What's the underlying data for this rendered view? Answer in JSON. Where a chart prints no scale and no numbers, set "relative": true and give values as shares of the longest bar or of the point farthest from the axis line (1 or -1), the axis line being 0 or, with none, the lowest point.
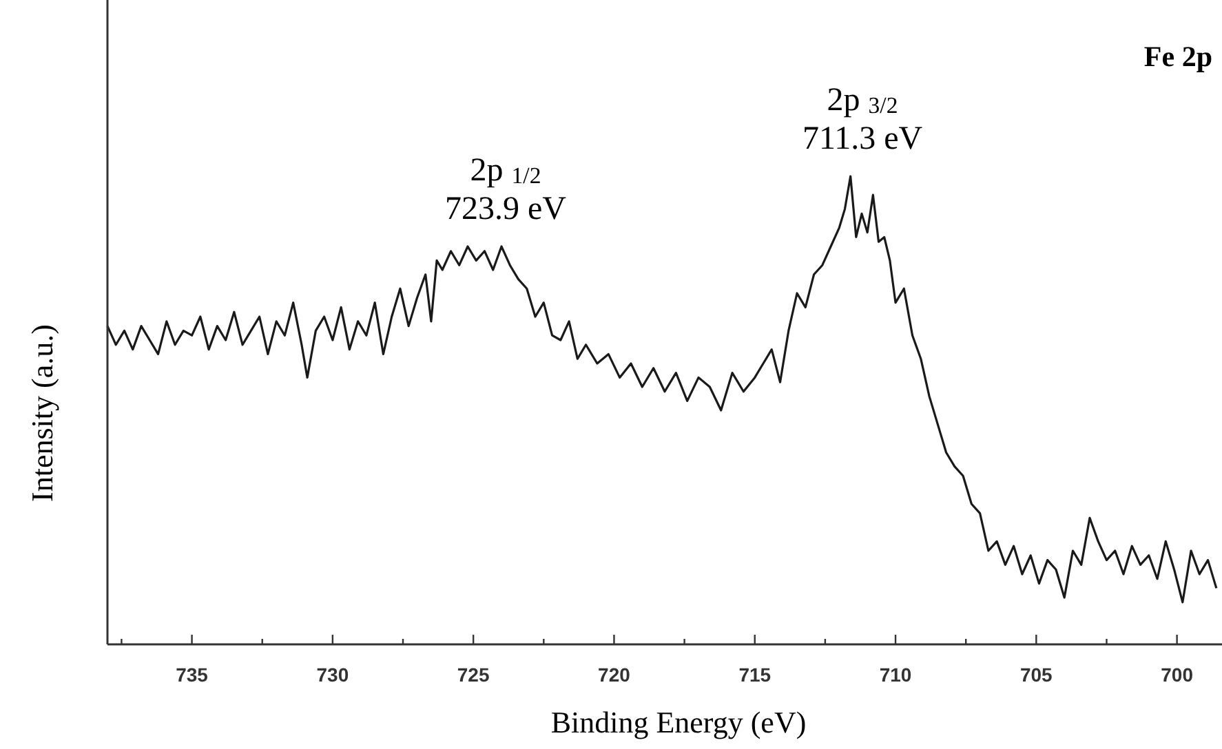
{
  "chart_data": {
    "type": "line",
    "relative": true,
    "title": "Fe 2p",
    "xlabel": "Binding Energy (eV)",
    "ylabel": "Intensity (a.u.)",
    "xlim": [
      738,
      698.4
    ],
    "xticks": [
      {
        "value": 737.5,
        "label": null
      },
      735,
      {
        "value": 732.5,
        "label": null
      },
      730,
      {
        "value": 727.5,
        "label": null
      },
      725,
      {
        "value": 722.5,
        "label": null
      },
      720,
      {
        "value": 717.5,
        "label": null
      },
      715,
      {
        "value": 712.5,
        "label": null
      },
      710,
      {
        "value": 707.5,
        "label": null
      },
      705,
      {
        "value": 702.5,
        "label": null
      },
      700
    ],
    "grid": false,
    "marker": "none",
    "line_style": "solid",
    "annotations": [
      "2p $_{1/2}$\n723.9 eV",
      "2p $_{3/2}$\n711.3 eV"
    ],
    "series": [
      {
        "color": "#1a1a1a",
        "x": [
          738,
          737.7,
          737.4,
          737.1,
          736.8,
          736.5,
          736.2,
          735.9,
          735.6,
          735.3,
          735,
          734.7,
          734.4,
          734.1,
          733.8,
          733.5,
          733.2,
          732.9,
          732.6,
          732.3,
          732,
          731.7,
          731.4,
          731.1,
          730.9,
          730.6,
          730.3,
          730,
          729.7,
          729.4,
          729.1,
          728.8,
          728.5,
          728.2,
          727.9,
          727.6,
          727.3,
          727,
          726.7,
          726.5,
          726.3,
          726.1,
          725.8,
          725.5,
          725.2,
          724.9,
          724.6,
          724.3,
          724,
          723.7,
          723.4,
          723.1,
          722.8,
          722.5,
          722.2,
          721.9,
          721.6,
          721.3,
          721,
          720.6,
          720.2,
          719.8,
          719.4,
          719,
          718.6,
          718.2,
          717.8,
          717.4,
          717,
          716.6,
          716.2,
          715.8,
          715.4,
          715,
          714.7,
          714.4,
          714.1,
          713.8,
          713.5,
          713.2,
          712.9,
          712.6,
          712.3,
          712,
          711.8,
          711.6,
          711.4,
          711.2,
          711,
          710.8,
          710.6,
          710.4,
          710.2,
          710,
          709.7,
          709.4,
          709.1,
          708.8,
          708.5,
          708.2,
          707.9,
          707.6,
          707.3,
          707,
          706.7,
          706.4,
          706.1,
          705.8,
          705.5,
          705.2,
          704.9,
          704.6,
          704.3,
          704,
          703.7,
          703.4,
          703.1,
          702.8,
          702.5,
          702.2,
          701.9,
          701.6,
          701.3,
          701,
          700.7,
          700.4,
          700.1,
          699.8,
          699.5,
          699.2,
          698.9,
          698.6
        ],
        "values": [
          0.68,
          0.64,
          0.67,
          0.63,
          0.68,
          0.65,
          0.62,
          0.69,
          0.64,
          0.67,
          0.66,
          0.7,
          0.63,
          0.68,
          0.65,
          0.71,
          0.64,
          0.67,
          0.7,
          0.62,
          0.69,
          0.66,
          0.73,
          0.64,
          0.57,
          0.67,
          0.7,
          0.65,
          0.72,
          0.63,
          0.69,
          0.66,
          0.73,
          0.62,
          0.7,
          0.76,
          0.68,
          0.74,
          0.79,
          0.69,
          0.82,
          0.8,
          0.84,
          0.81,
          0.85,
          0.82,
          0.84,
          0.8,
          0.85,
          0.81,
          0.78,
          0.76,
          0.7,
          0.73,
          0.66,
          0.65,
          0.69,
          0.61,
          0.64,
          0.6,
          0.62,
          0.57,
          0.6,
          0.55,
          0.59,
          0.54,
          0.58,
          0.52,
          0.57,
          0.55,
          0.5,
          0.58,
          0.54,
          0.57,
          0.6,
          0.63,
          0.56,
          0.67,
          0.75,
          0.72,
          0.79,
          0.81,
          0.85,
          0.89,
          0.93,
          1.0,
          0.87,
          0.92,
          0.88,
          0.96,
          0.86,
          0.87,
          0.82,
          0.73,
          0.76,
          0.66,
          0.61,
          0.53,
          0.47,
          0.41,
          0.38,
          0.36,
          0.3,
          0.28,
          0.2,
          0.22,
          0.17,
          0.21,
          0.15,
          0.19,
          0.13,
          0.18,
          0.16,
          0.1,
          0.2,
          0.17,
          0.27,
          0.22,
          0.18,
          0.2,
          0.15,
          0.21,
          0.17,
          0.19,
          0.14,
          0.22,
          0.16,
          0.09,
          0.2,
          0.15,
          0.18,
          0.12
        ]
      }
    ]
  }
}
